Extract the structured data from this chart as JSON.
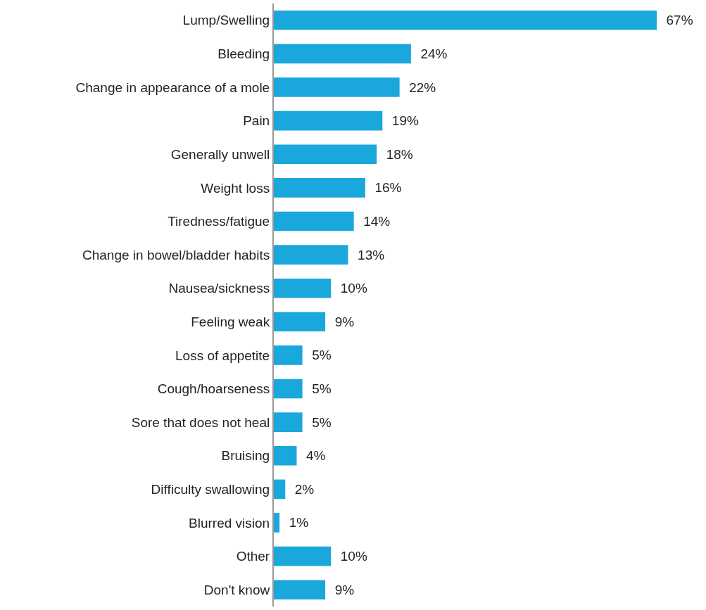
{
  "chart_data": {
    "type": "bar",
    "orientation": "horizontal",
    "categories": [
      "Lump/Swelling",
      "Bleeding",
      "Change in appearance of a mole",
      "Pain",
      "Generally unwell",
      "Weight loss",
      "Tiredness/fatigue",
      "Change in bowel/bladder habits",
      "Nausea/sickness",
      "Feeling weak",
      "Loss of appetite",
      "Cough/hoarseness",
      "Sore that does not heal",
      "Bruising",
      "Difficulty swallowing",
      "Blurred vision",
      "Other",
      "Don't know"
    ],
    "values": [
      67,
      24,
      22,
      19,
      18,
      16,
      14,
      13,
      10,
      9,
      5,
      5,
      5,
      4,
      2,
      1,
      10,
      9
    ],
    "value_labels": [
      "67%",
      "24%",
      "22%",
      "19%",
      "18%",
      "16%",
      "14%",
      "13%",
      "10%",
      "9%",
      "5%",
      "5%",
      "5%",
      "4%",
      "2%",
      "1%",
      "10%",
      "9%"
    ],
    "color": "#1aa7dc"
  }
}
